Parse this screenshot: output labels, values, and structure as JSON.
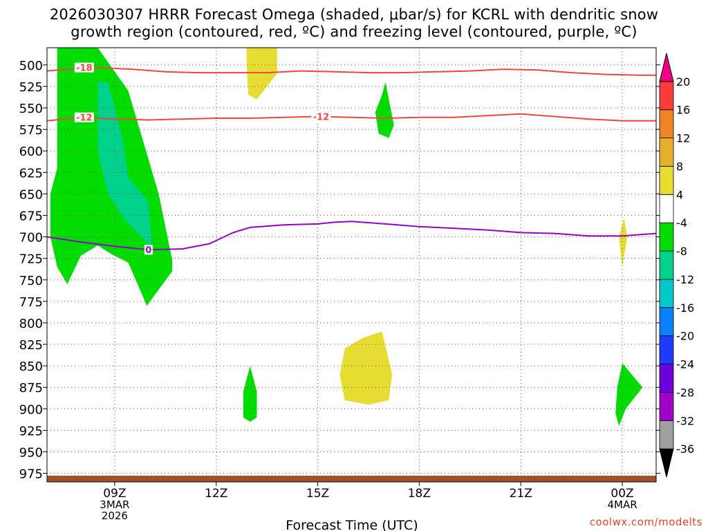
{
  "title_line1": "2026030307 HRRR Forecast Omega (shaded, μbar/s) for KCRL with dendritic snow",
  "title_line2": "growth region (contoured, red, ºC) and freezing level (contoured, purple, ºC)",
  "credit": "coolwx.com/modelts",
  "chart_data": {
    "type": "time-height cross section",
    "xlabel": "Forecast Time (UTC)",
    "ylabel": "",
    "x_ticks": [
      {
        "hour": 9,
        "lines": [
          "09Z",
          "3MAR",
          "2026"
        ]
      },
      {
        "hour": 12,
        "lines": [
          "12Z"
        ]
      },
      {
        "hour": 15,
        "lines": [
          "15Z"
        ]
      },
      {
        "hour": 18,
        "lines": [
          "18Z"
        ]
      },
      {
        "hour": 21,
        "lines": [
          "21Z"
        ]
      },
      {
        "hour": 24,
        "lines": [
          "00Z",
          "4MAR"
        ]
      }
    ],
    "xlim_hours": [
      7,
      25
    ],
    "y_ticks": [
      500,
      525,
      550,
      575,
      600,
      625,
      650,
      675,
      700,
      725,
      750,
      775,
      800,
      825,
      850,
      875,
      900,
      925,
      950,
      975
    ],
    "ylim_hPa": [
      480,
      985
    ],
    "y_inverted": true,
    "grid": "dotted",
    "colorbar": {
      "colors": [
        "#000000",
        "#a0a0a0",
        "#a000c8",
        "#6e00dc",
        "#1e3cff",
        "#0a82ff",
        "#00c8c8",
        "#00d28c",
        "#00dc00",
        "#ffffff",
        "#e6dc32",
        "#e6af2d",
        "#f08228",
        "#fa3c3c",
        "#f00082"
      ],
      "labels": [
        "-36",
        "-32",
        "-28",
        "-24",
        "-20",
        "-16",
        "-12",
        "-8",
        "-4",
        "4",
        "8",
        "12",
        "16",
        "20"
      ]
    },
    "omega_regions": [
      {
        "color": "#00dc00",
        "points": [
          [
            7.5,
            480
          ],
          [
            8.5,
            480
          ],
          [
            9.4,
            530
          ],
          [
            10.3,
            650
          ],
          [
            10.7,
            727
          ],
          [
            10.7,
            740
          ],
          [
            9.95,
            780
          ],
          [
            9.4,
            730
          ],
          [
            8.9,
            720
          ],
          [
            8.5,
            710
          ],
          [
            8.0,
            722
          ],
          [
            7.6,
            755
          ],
          [
            7.3,
            735
          ],
          [
            7.1,
            700
          ],
          [
            7.1,
            650
          ],
          [
            7.3,
            620
          ],
          [
            7.3,
            480
          ]
        ]
      },
      {
        "color": "#00d28c",
        "points": [
          [
            8.5,
            520
          ],
          [
            8.8,
            520
          ],
          [
            9.2,
            580
          ],
          [
            9.4,
            630
          ],
          [
            10.0,
            660
          ],
          [
            10.1,
            715
          ],
          [
            9.8,
            700
          ],
          [
            9.3,
            680
          ],
          [
            8.8,
            650
          ],
          [
            8.5,
            600
          ],
          [
            8.5,
            520
          ]
        ]
      },
      {
        "color": "#e6dc32",
        "points": [
          [
            12.9,
            480
          ],
          [
            13.8,
            480
          ],
          [
            13.8,
            510
          ],
          [
            13.2,
            540
          ],
          [
            12.95,
            535
          ],
          [
            12.9,
            500
          ]
        ]
      },
      {
        "color": "#00dc00",
        "points": [
          [
            17.0,
            520
          ],
          [
            17.25,
            570
          ],
          [
            17.1,
            585
          ],
          [
            16.8,
            580
          ],
          [
            16.7,
            555
          ],
          [
            16.9,
            535
          ],
          [
            17.0,
            520
          ]
        ]
      },
      {
        "color": "#e6dc32",
        "points": [
          [
            15.8,
            830
          ],
          [
            16.3,
            818
          ],
          [
            16.9,
            810
          ],
          [
            17.2,
            860
          ],
          [
            17.1,
            890
          ],
          [
            16.5,
            895
          ],
          [
            15.8,
            890
          ],
          [
            15.65,
            860
          ],
          [
            15.8,
            830
          ]
        ]
      },
      {
        "color": "#00dc00",
        "points": [
          [
            13.0,
            850
          ],
          [
            13.2,
            880
          ],
          [
            13.2,
            910
          ],
          [
            13.0,
            915
          ],
          [
            12.8,
            910
          ],
          [
            12.8,
            880
          ],
          [
            13.0,
            850
          ]
        ]
      },
      {
        "color": "#e6dc32",
        "points": [
          [
            24.05,
            678
          ],
          [
            24.15,
            700
          ],
          [
            24.0,
            735
          ],
          [
            23.9,
            700
          ],
          [
            24.05,
            678
          ]
        ]
      },
      {
        "color": "#00dc00",
        "points": [
          [
            24.0,
            847
          ],
          [
            24.6,
            875
          ],
          [
            24.1,
            900
          ],
          [
            23.9,
            920
          ],
          [
            23.8,
            905
          ],
          [
            23.85,
            875
          ],
          [
            24.0,
            847
          ]
        ]
      }
    ],
    "contours": [
      {
        "level": -18,
        "color": "#f0463c",
        "points": [
          [
            7.0,
            507
          ],
          [
            7.6,
            505
          ],
          [
            8.5,
            503
          ],
          [
            9.5,
            505
          ],
          [
            10.5,
            508
          ],
          [
            11.5,
            509
          ],
          [
            12.5,
            509
          ],
          [
            13.5,
            509
          ],
          [
            14.5,
            507
          ],
          [
            15.5,
            508
          ],
          [
            16.5,
            509
          ],
          [
            17.5,
            509
          ],
          [
            18.5,
            508
          ],
          [
            19.5,
            507
          ],
          [
            20.5,
            505
          ],
          [
            21.5,
            506
          ],
          [
            22.5,
            509
          ],
          [
            23.5,
            511
          ],
          [
            24.5,
            512
          ],
          [
            25.0,
            512
          ]
        ],
        "labels": [
          {
            "x": 8.1,
            "text": "-18"
          }
        ]
      },
      {
        "level": -12,
        "color": "#f0463c",
        "points": [
          [
            7.0,
            565
          ],
          [
            8.0,
            561
          ],
          [
            9.0,
            563
          ],
          [
            10.0,
            564
          ],
          [
            11.0,
            563
          ],
          [
            12.0,
            562
          ],
          [
            13.0,
            562
          ],
          [
            14.0,
            561
          ],
          [
            15.0,
            560
          ],
          [
            16.0,
            561
          ],
          [
            17.0,
            562
          ],
          [
            18.0,
            561
          ],
          [
            19.0,
            561
          ],
          [
            20.0,
            559
          ],
          [
            21.0,
            557
          ],
          [
            22.0,
            560
          ],
          [
            23.0,
            563
          ],
          [
            24.0,
            565
          ],
          [
            25.0,
            565
          ]
        ],
        "labels": [
          {
            "x": 8.1,
            "text": "-12"
          },
          {
            "x": 15.1,
            "text": "-12"
          }
        ]
      },
      {
        "level": 0,
        "color": "#9600c8",
        "points": [
          [
            7.0,
            700
          ],
          [
            8.0,
            706
          ],
          [
            9.0,
            711
          ],
          [
            10.0,
            715
          ],
          [
            11.0,
            714
          ],
          [
            11.8,
            708
          ],
          [
            12.5,
            695
          ],
          [
            13.0,
            689
          ],
          [
            14.0,
            686
          ],
          [
            15.0,
            685
          ],
          [
            15.5,
            683
          ],
          [
            16.0,
            682
          ],
          [
            17.0,
            685
          ],
          [
            18.0,
            688
          ],
          [
            19.0,
            690
          ],
          [
            20.0,
            692
          ],
          [
            21.0,
            695
          ],
          [
            22.0,
            696
          ],
          [
            23.0,
            699
          ],
          [
            24.0,
            699
          ],
          [
            25.0,
            696
          ]
        ],
        "labels": [
          {
            "x": 10.0,
            "text": "0"
          }
        ]
      }
    ],
    "terrain_color": "#a0522d"
  }
}
